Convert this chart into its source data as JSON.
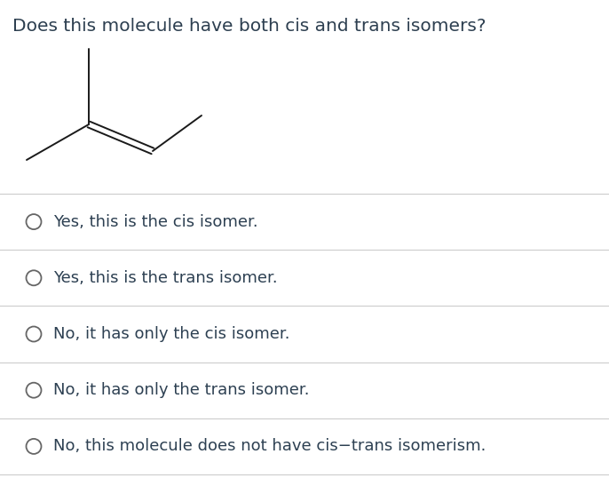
{
  "title": "Does this molecule have both cis and trans isomers?",
  "title_color": "#2d3f50",
  "title_fontsize": 14.5,
  "bg_color": "#ffffff",
  "options": [
    "Yes, this is the cis isomer.",
    "Yes, this is the trans isomer.",
    "No, it has only the cis isomer.",
    "No, it has only the trans isomer.",
    "No, this molecule does not have cis−trans isomerism."
  ],
  "option_fontsize": 13.0,
  "option_color": "#2d4052",
  "divider_color": "#cccccc",
  "circle_color": "#666666",
  "circle_lw": 1.3,
  "line_color": "#1a1a1a",
  "line_width": 1.4
}
